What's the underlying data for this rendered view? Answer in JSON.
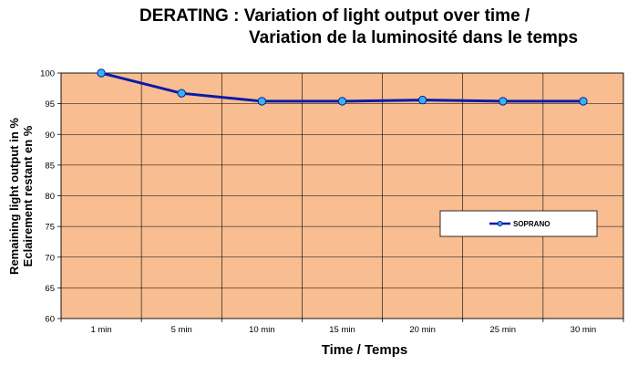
{
  "chart_data": {
    "type": "line",
    "title_line1": "DERATING : Variation of light output over time /",
    "title_line2": "Variation de la luminosité dans le temps",
    "xlabel": "Time / Temps",
    "ylabel_line1": "Remaining light output in %",
    "ylabel_line2": "Eclairement restant en %",
    "categories": [
      "1 min",
      "5 min",
      "10 min",
      "15 min",
      "20 min",
      "25 min",
      "30 min"
    ],
    "yticks": [
      "60",
      "65",
      "70",
      "75",
      "80",
      "85",
      "90",
      "95",
      "100"
    ],
    "ylim": [
      60,
      100
    ],
    "grid": true,
    "legend_position": "right",
    "series": [
      {
        "name": "SOPRANO",
        "values": [
          100,
          96.7,
          95.4,
          95.4,
          95.6,
          95.4,
          95.4
        ]
      }
    ],
    "colors": {
      "plot_bg": "#F8BD90",
      "line": "#0A1AA8",
      "marker": "#33B5EE",
      "grid": "#000000"
    }
  }
}
